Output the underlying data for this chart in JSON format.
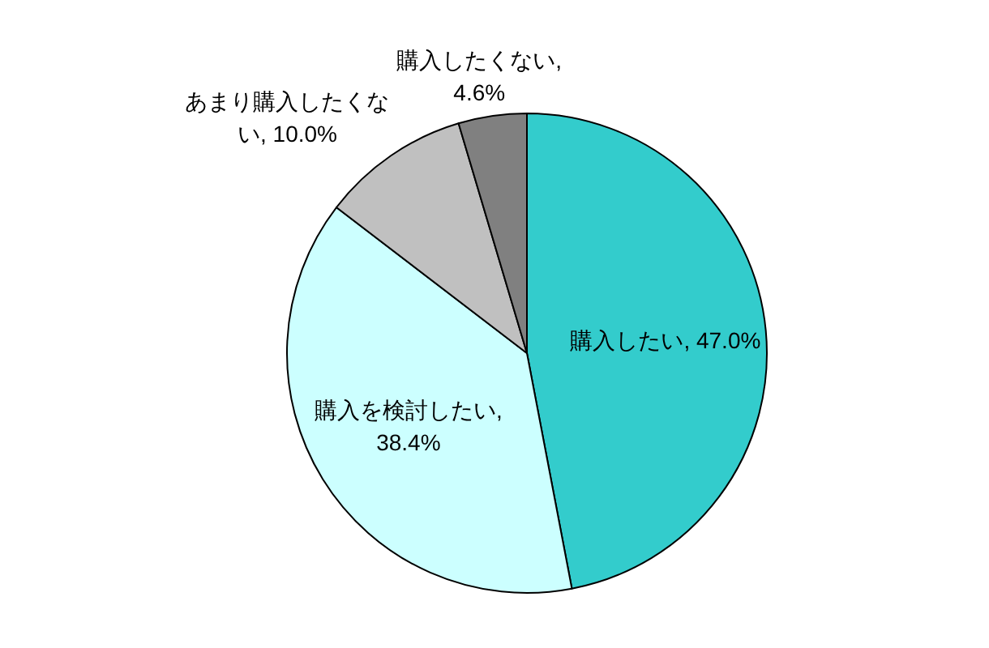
{
  "chart_data": {
    "type": "pie",
    "categories": [
      "購入したい",
      "購入を検討したい",
      "あまり購入したくない",
      "購入したくない"
    ],
    "values": [
      47.0,
      38.4,
      10.0,
      4.6
    ],
    "colors": [
      "#33cccc",
      "#ccffff",
      "#c0c0c0",
      "#808080"
    ],
    "value_labels": [
      ", 47.0%",
      ", 38.4%",
      ", 10.0%",
      ", 4.6%"
    ]
  }
}
